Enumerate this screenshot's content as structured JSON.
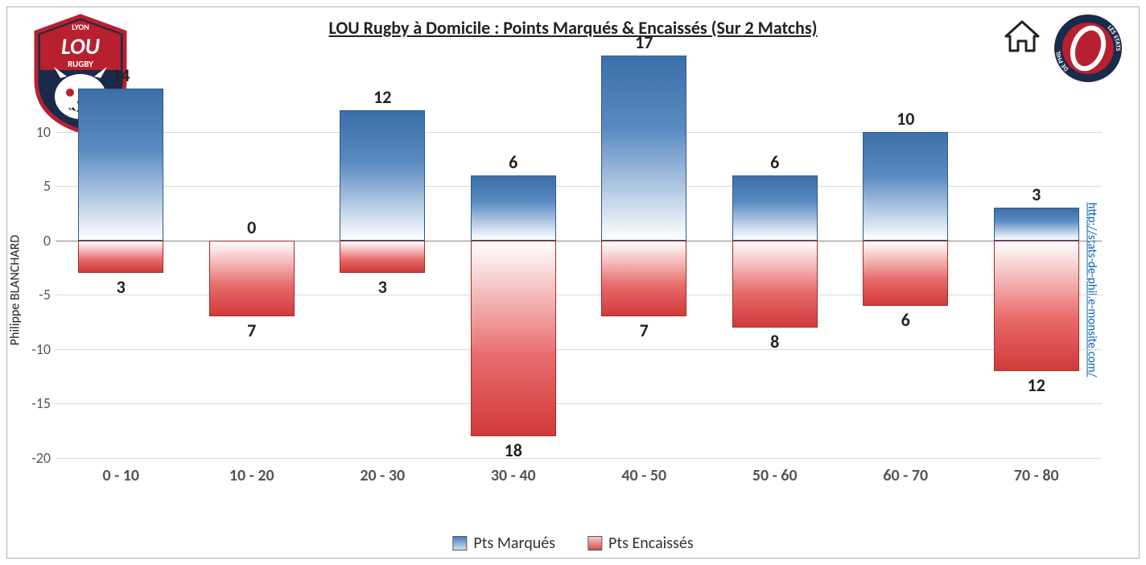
{
  "title": "LOU Rugby à Domicile : Points Marqués & Encaissés (Sur 2 Matchs)",
  "author": "Philippe BLANCHARD",
  "url": "http://stats-de-phil.e-monsite.com/",
  "chart": {
    "type": "bar",
    "categories": [
      "0 - 10",
      "10 - 20",
      "20 - 30",
      "30 - 40",
      "40 - 50",
      "50 - 60",
      "60 - 70",
      "70 - 80"
    ],
    "series": [
      {
        "name": "Pts Marqués",
        "values": [
          14,
          0,
          12,
          6,
          17,
          6,
          10,
          3
        ],
        "direction": "up",
        "gradient_top": "#3b6fa8",
        "gradient_bottom": "#ffffff",
        "border_color": "#2e5a8a"
      },
      {
        "name": "Pts Encaissés",
        "values": [
          3,
          7,
          3,
          18,
          7,
          8,
          6,
          12
        ],
        "direction": "down",
        "gradient_top": "#ffffff",
        "gradient_bottom": "#d13a3a",
        "border_color": "#a52a2a"
      }
    ],
    "ylim": [
      -20,
      17
    ],
    "yticks": [
      -20,
      -15,
      -10,
      -5,
      0,
      5,
      10
    ],
    "grid_color": "#d9d9d9",
    "zero_line_color": "#888888",
    "background_color": "#ffffff",
    "bar_width_ratio": 0.65,
    "label_fontsize": 22,
    "label_fontweight": "bold",
    "axis_fontsize": 18,
    "xaxis_fontsize": 20,
    "title_fontsize": 22
  },
  "legend": {
    "items": [
      {
        "label": "Pts Marqués",
        "swatch_class": "pos"
      },
      {
        "label": "Pts Encaissés",
        "swatch_class": "neg"
      }
    ]
  },
  "logos": {
    "left": {
      "name": "lou-rugby-logo",
      "text_top": "LYON",
      "text_main": "LOU",
      "text_sub": "RUGBY",
      "bg": "#1a2a4a",
      "accent": "#b8202f"
    },
    "right": {
      "name": "stats-de-phil-logo",
      "text": "LES STATS DE PHIL",
      "ring": "#1a2a4a",
      "inner": "#b8202f"
    },
    "home_icon": "⌂"
  }
}
